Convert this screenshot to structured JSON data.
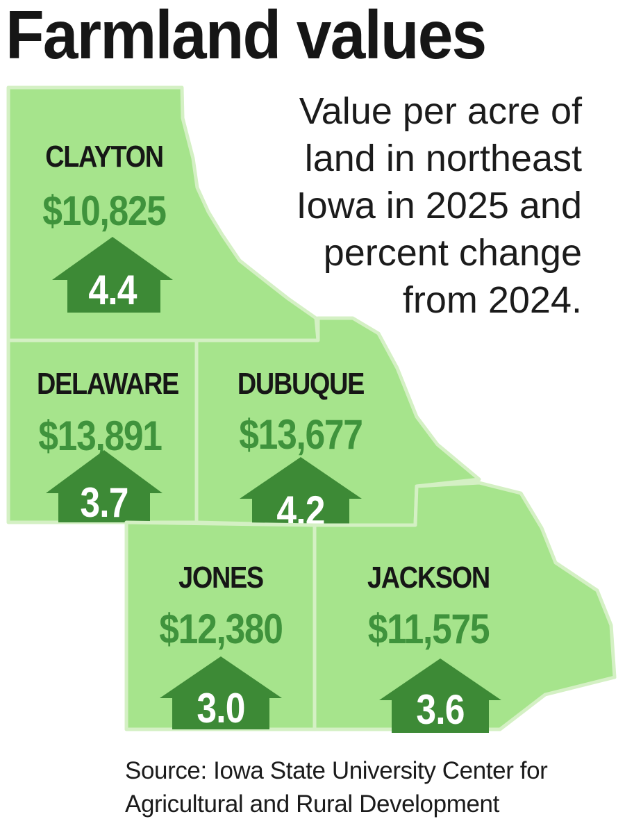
{
  "title": "Farmland values",
  "subtitle": "Value per acre of land in northeast Iowa in 2025 and percent change from 2024.",
  "source": "Source: Iowa State University Center for Agricultural and Rural Development",
  "colors": {
    "county_fill": "#a6e48c",
    "county_border": "#d4f0c4",
    "value_text": "#3f933c",
    "arrow_fill": "#3d8a36",
    "arrow_text": "#ffffff",
    "name_text": "#161616"
  },
  "counties": [
    {
      "name": "CLAYTON",
      "value": "$10,825",
      "change": "4.4",
      "direction": "up"
    },
    {
      "name": "DELAWARE",
      "value": "$13,891",
      "change": "3.7",
      "direction": "up"
    },
    {
      "name": "DUBUQUE",
      "value": "$13,677",
      "change": "4.2",
      "direction": "up"
    },
    {
      "name": "JONES",
      "value": "$12,380",
      "change": "3.0",
      "direction": "up"
    },
    {
      "name": "JACKSON",
      "value": "$11,575",
      "change": "3.6",
      "direction": "up"
    }
  ]
}
